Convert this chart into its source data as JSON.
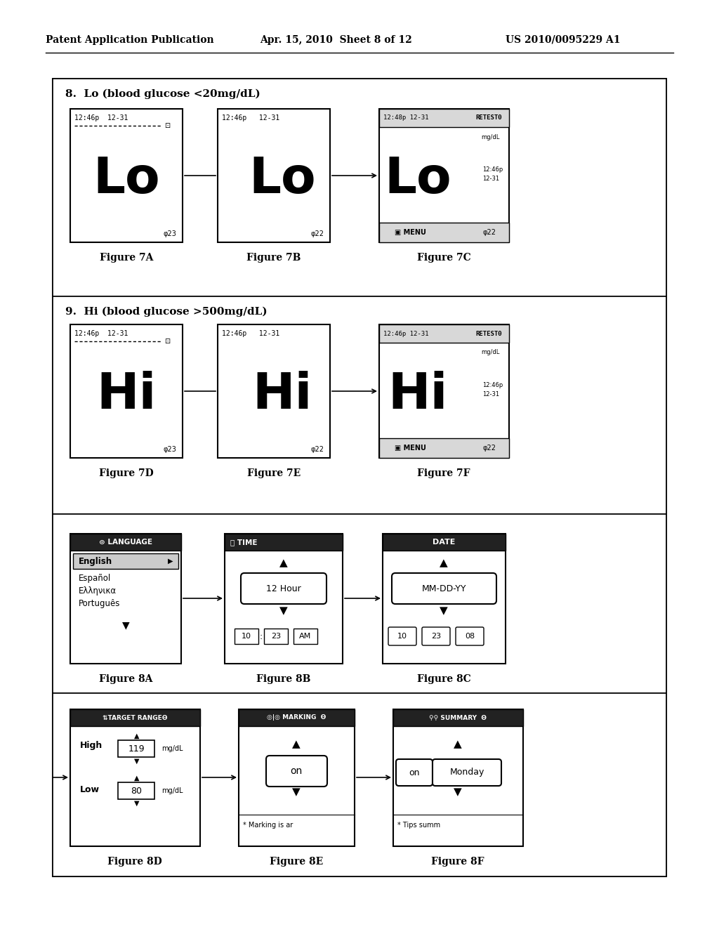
{
  "bg_color": "#ffffff",
  "header_text": "Patent Application Publication",
  "header_date": "Apr. 15, 2010  Sheet 8 of 12",
  "header_patent": "US 2010/0095229 A1",
  "section8_title": "8.  Lo (blood glucose <20mg/dL)",
  "section9_title": "9.  Hi (blood glucose >500mg/dL)",
  "fig7A_caption": "Figure 7A",
  "fig7B_caption": "Figure 7B",
  "fig7C_caption": "Figure 7C",
  "fig7D_caption": "Figure 7D",
  "fig7E_caption": "Figure 7E",
  "fig7F_caption": "Figure 7F",
  "fig8A_caption": "Figure 8A",
  "fig8B_caption": "Figure 8B",
  "fig8C_caption": "Figure 8C",
  "fig8D_caption": "Figure 8D",
  "fig8E_caption": "Figure 8E",
  "fig8F_caption": "Figure 8F"
}
